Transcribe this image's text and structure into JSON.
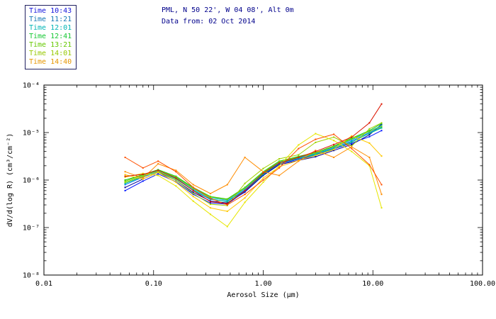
{
  "header": {
    "line1": "PML, N 50 22', W 04 08', Alt 0m",
    "line2": "Data from: 02 Oct 2014",
    "color": "#00008b"
  },
  "legend": {
    "items": [
      {
        "label": "Time 10:43",
        "color": "#1414dc"
      },
      {
        "label": "Time 11:21",
        "color": "#1478b4"
      },
      {
        "label": "Time 12:01",
        "color": "#00b4b4"
      },
      {
        "label": "Time 12:41",
        "color": "#14c832"
      },
      {
        "label": "Time 13:21",
        "color": "#64c800"
      },
      {
        "label": "Time 14:01",
        "color": "#96c800"
      },
      {
        "label": "Time 14:40",
        "color": "#e69600"
      }
    ]
  },
  "chart_data": {
    "type": "line",
    "title": "",
    "xlabel": "Aerosol Size (μm)",
    "ylabel": "dV/d(log R) (cm³/cm⁻²)",
    "x_scale": "log",
    "y_scale": "log",
    "xlim": [
      0.01,
      100
    ],
    "ylim": [
      1e-08,
      0.0001
    ],
    "grid": false,
    "legend_position": "top-left",
    "x_ticks": [
      {
        "v": 0.01,
        "label": "0.01"
      },
      {
        "v": 0.1,
        "label": "0.10"
      },
      {
        "v": 1,
        "label": "1.00"
      },
      {
        "v": 10,
        "label": "10.00"
      },
      {
        "v": 100,
        "label": "100.00"
      }
    ],
    "y_ticks": [
      {
        "v": 0.0001,
        "label": "10⁻⁴"
      },
      {
        "v": 1e-05,
        "label": "10⁻⁵"
      },
      {
        "v": 1e-06,
        "label": "10⁻⁶"
      },
      {
        "v": 1e-07,
        "label": "10⁻⁷"
      },
      {
        "v": 1e-08,
        "label": "10⁻⁸"
      }
    ],
    "x": [
      0.055,
      0.08,
      0.11,
      0.16,
      0.23,
      0.33,
      0.47,
      0.68,
      1.0,
      1.4,
      2.1,
      3.0,
      4.4,
      6.4,
      9.3,
      12.0
    ],
    "series": [
      {
        "color": "#000096",
        "values": [
          7e-07,
          1.05e-06,
          1.45e-06,
          1e-06,
          5.5e-07,
          3.6e-07,
          3.3e-07,
          5.6e-07,
          1.25e-06,
          2.1e-06,
          2.6e-06,
          3.1e-06,
          4.2e-06,
          5.6e-06,
          9e-06,
          1.5e-05
        ]
      },
      {
        "color": "#0014ff",
        "values": [
          6e-07,
          9.5e-07,
          1.35e-06,
          9.2e-07,
          5e-07,
          3.3e-07,
          3.1e-07,
          5.8e-07,
          1.3e-06,
          2.2e-06,
          2.75e-06,
          3.3e-06,
          4.5e-06,
          6e-06,
          8.2e-06,
          1.1e-05
        ]
      },
      {
        "color": "#0078ff",
        "values": [
          8e-07,
          1.15e-06,
          1.5e-06,
          1.08e-06,
          6e-07,
          3.9e-07,
          3.6e-07,
          6.2e-07,
          1.35e-06,
          2.3e-06,
          2.9e-06,
          3.5e-06,
          4.8e-06,
          6.6e-06,
          1e-05,
          1.3e-05
        ]
      },
      {
        "color": "#00b4d2",
        "values": [
          9e-07,
          1.22e-06,
          1.58e-06,
          1.14e-06,
          6.4e-07,
          4.2e-07,
          3.8e-07,
          6.5e-07,
          1.4e-06,
          2.4e-06,
          3e-06,
          3.6e-06,
          5e-06,
          7e-06,
          1.06e-05,
          1.4e-05
        ]
      },
      {
        "color": "#00c878",
        "values": [
          8.5e-07,
          1.18e-06,
          1.52e-06,
          1.06e-06,
          6.1e-07,
          4e-07,
          3.5e-07,
          6e-07,
          1.32e-06,
          2.26e-06,
          2.85e-06,
          3.4e-06,
          4.6e-06,
          6.3e-06,
          9.6e-06,
          1.25e-05
        ]
      },
      {
        "color": "#14c814",
        "values": [
          1e-06,
          1.3e-06,
          1.65e-06,
          1.2e-06,
          7e-07,
          4.5e-07,
          4e-07,
          7e-07,
          1.5e-06,
          2.5e-06,
          3.15e-06,
          3.8e-06,
          5.2e-06,
          7.6e-06,
          1.1e-05,
          1.55e-05
        ]
      },
      {
        "color": "#78d200",
        "values": [
          9.5e-07,
          1.27e-06,
          1.6e-06,
          1.16e-06,
          6.7e-07,
          4.4e-07,
          3.9e-07,
          6.8e-07,
          1.45e-06,
          2.45e-06,
          3.05e-06,
          3.7e-06,
          5.05e-06,
          7.3e-06,
          1.05e-05,
          1.35e-05
        ]
      },
      {
        "color": "#a0d200",
        "values": [
          9e-07,
          1.2e-06,
          1.5e-06,
          1e-06,
          5.2e-07,
          3.1e-07,
          2.9e-07,
          8.5e-07,
          1.75e-06,
          2.8e-06,
          3.4e-06,
          6.2e-06,
          8e-06,
          5.2e-06,
          1.2e-05,
          1.6e-05
        ]
      },
      {
        "color": "#e6e600",
        "values": [
          1.15e-06,
          1.38e-06,
          1.25e-06,
          7.5e-07,
          3.6e-07,
          1.9e-07,
          1.05e-07,
          3.4e-07,
          9e-07,
          2e-06,
          5.5e-06,
          9.5e-06,
          6.8e-06,
          4e-06,
          2e-06,
          2.6e-07
        ]
      },
      {
        "color": "#ffc800",
        "values": [
          1.3e-06,
          1.05e-06,
          1.45e-06,
          9e-07,
          4.5e-07,
          2.6e-07,
          2.2e-07,
          4.2e-07,
          1.1e-06,
          1.9e-06,
          2.6e-06,
          3.3e-06,
          4.4e-06,
          8.5e-06,
          6e-06,
          3.2e-06
        ]
      },
      {
        "color": "#ff8c00",
        "values": [
          1.5e-06,
          1.1e-06,
          2.2e-06,
          1.6e-06,
          8e-07,
          5.2e-07,
          8e-07,
          3e-06,
          1.5e-06,
          1.25e-06,
          2.5e-06,
          4.2e-06,
          3e-06,
          5e-06,
          3e-06,
          5e-07
        ]
      },
      {
        "color": "#ff5000",
        "values": [
          3e-06,
          1.8e-06,
          2.5e-06,
          1.5e-06,
          7e-07,
          4.1e-07,
          3e-07,
          5e-07,
          1e-06,
          1.8e-06,
          4.6e-06,
          7.2e-06,
          9.2e-06,
          4.6e-06,
          2.1e-06,
          8e-07
        ]
      },
      {
        "color": "#dc1400",
        "values": [
          1.2e-06,
          1.32e-06,
          1.6e-06,
          1.1e-06,
          6e-07,
          3.5e-07,
          3.2e-07,
          6e-07,
          1.4e-06,
          2.3e-06,
          3e-06,
          4e-06,
          5.6e-06,
          8e-06,
          1.6e-05,
          4e-05
        ]
      }
    ]
  }
}
